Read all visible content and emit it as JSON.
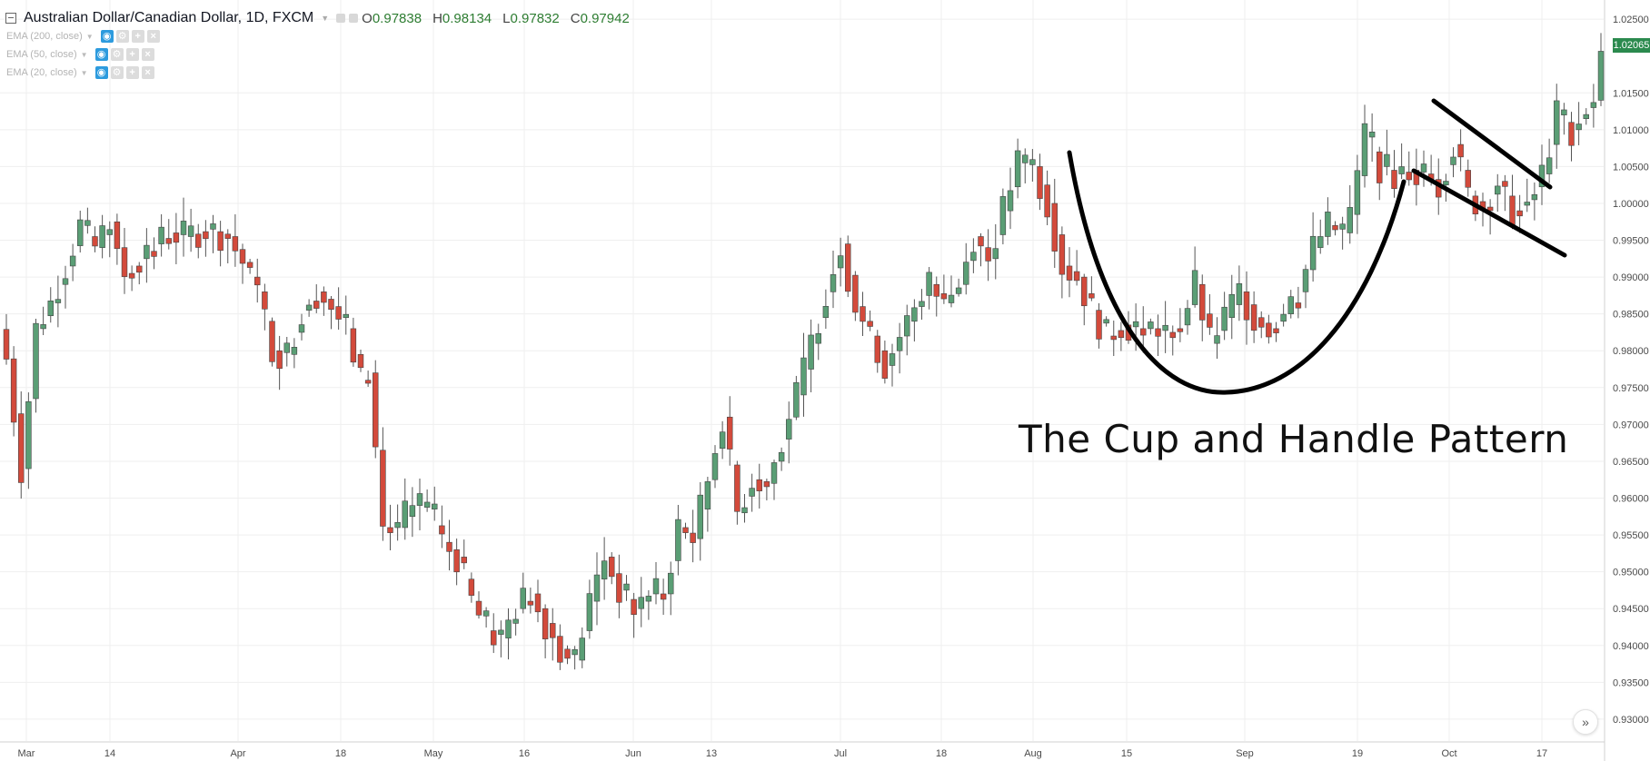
{
  "header": {
    "symbol_title": "Australian Dollar/Canadian Dollar, 1D, FXCM",
    "ohlc": {
      "open_label": "O",
      "open_value": "0.97838",
      "high_label": "H",
      "high_value": "0.98134",
      "low_label": "L",
      "low_value": "0.97832",
      "close_label": "C",
      "close_value": "0.97942"
    }
  },
  "indicators": [
    {
      "label": "EMA (200, close)"
    },
    {
      "label": "EMA (50, close)"
    },
    {
      "label": "EMA (20, close)"
    }
  ],
  "annotation": {
    "text": "The Cup and Handle Pattern"
  },
  "price_tag": {
    "value": "1.02065",
    "color": "#2b8a4e"
  },
  "colors": {
    "up": "#5a9e75",
    "down": "#d34a3b",
    "grid": "#efefef",
    "axis_text": "#4a4a4a",
    "drawing": "#000000"
  },
  "chart_data": {
    "type": "candlestick",
    "x_tick_labels": [
      "Mar",
      "14",
      "Apr",
      "18",
      "May",
      "16",
      "Jun",
      "13",
      "Jul",
      "18",
      "Aug",
      "15",
      "Sep",
      "19",
      "Oct",
      "17"
    ],
    "y_tick_labels": [
      "1.02500",
      "1.01500",
      "1.01000",
      "1.00500",
      "1.00000",
      "0.99500",
      "0.99000",
      "0.98500",
      "0.98000",
      "0.97500",
      "0.97000",
      "0.96500",
      "0.96000",
      "0.95500",
      "0.95000",
      "0.94500",
      "0.94000",
      "0.93500",
      "0.93000"
    ],
    "ylim": [
      0.929,
      1.0265
    ],
    "last_price": 1.02065,
    "close_path": [
      [
        0,
        0.9789
      ],
      [
        2,
        0.964
      ],
      [
        4,
        0.983
      ],
      [
        6,
        0.9865
      ],
      [
        8,
        0.9915
      ],
      [
        10,
        0.997
      ],
      [
        12,
        0.994
      ],
      [
        14,
        0.9975
      ],
      [
        16,
        0.9905
      ],
      [
        18,
        0.9925
      ],
      [
        20,
        0.9945
      ],
      [
        22,
        0.996
      ],
      [
        24,
        0.9955
      ],
      [
        27,
        0.9965
      ],
      [
        30,
        0.9955
      ],
      [
        32,
        0.992
      ],
      [
        34,
        0.988
      ],
      [
        36,
        0.98
      ],
      [
        38,
        0.9795
      ],
      [
        40,
        0.9855
      ],
      [
        42,
        0.988
      ],
      [
        44,
        0.986
      ],
      [
        46,
        0.983
      ],
      [
        48,
        0.976
      ],
      [
        49,
        0.977
      ],
      [
        51,
        0.956
      ],
      [
        53,
        0.956
      ],
      [
        55,
        0.959
      ],
      [
        57,
        0.9585
      ],
      [
        59,
        0.954
      ],
      [
        61,
        0.952
      ],
      [
        63,
        0.946
      ],
      [
        65,
        0.942
      ],
      [
        67,
        0.941
      ],
      [
        69,
        0.945
      ],
      [
        71,
        0.947
      ],
      [
        73,
        0.943
      ],
      [
        75,
        0.9395
      ],
      [
        77,
        0.938
      ],
      [
        79,
        0.946
      ],
      [
        81,
        0.952
      ],
      [
        83,
        0.9475
      ],
      [
        85,
        0.945
      ],
      [
        87,
        0.947
      ],
      [
        89,
        0.947
      ],
      [
        91,
        0.956
      ],
      [
        93,
        0.9545
      ],
      [
        95,
        0.9625
      ],
      [
        97,
        0.971
      ],
      [
        99,
        0.958
      ],
      [
        101,
        0.9625
      ],
      [
        103,
        0.962
      ],
      [
        105,
        0.968
      ],
      [
        107,
        0.974
      ],
      [
        109,
        0.981
      ],
      [
        111,
        0.988
      ],
      [
        113,
        0.9945
      ],
      [
        115,
        0.986
      ],
      [
        117,
        0.982
      ],
      [
        119,
        0.978
      ],
      [
        121,
        0.982
      ],
      [
        123,
        0.986
      ],
      [
        125,
        0.989
      ],
      [
        127,
        0.9865
      ],
      [
        129,
        0.989
      ],
      [
        131,
        0.9955
      ],
      [
        133,
        0.9925
      ],
      [
        135,
        0.999
      ],
      [
        137,
        1.0055
      ],
      [
        139,
        1.005
      ],
      [
        141,
        1.0
      ],
      [
        143,
        0.9915
      ],
      [
        145,
        0.99
      ],
      [
        147,
        0.9855
      ],
      [
        149,
        0.982
      ],
      [
        151,
        0.9835
      ],
      [
        153,
        0.983
      ],
      [
        155,
        0.983
      ],
      [
        157,
        0.9825
      ],
      [
        159,
        0.9835
      ],
      [
        161,
        0.989
      ],
      [
        163,
        0.981
      ],
      [
        165,
        0.9845
      ],
      [
        167,
        0.988
      ],
      [
        169,
        0.9845
      ],
      [
        171,
        0.983
      ],
      [
        173,
        0.985
      ],
      [
        175,
        0.988
      ],
      [
        177,
        0.994
      ],
      [
        179,
        0.997
      ],
      [
        181,
        0.996
      ],
      [
        182,
        0.9985
      ],
      [
        184,
        1.009
      ],
      [
        186,
        1.005
      ],
      [
        188,
        1.004
      ],
      [
        190,
        1.0045
      ],
      [
        192,
        1.004
      ],
      [
        194,
        1.0025
      ],
      [
        196,
        1.008
      ],
      [
        198,
        1.001
      ],
      [
        200,
        0.9995
      ],
      [
        202,
        1.003
      ],
      [
        204,
        0.999
      ],
      [
        206,
        1.0005
      ],
      [
        208,
        1.004
      ],
      [
        210,
        1.012
      ],
      [
        212,
        1.01
      ],
      [
        214,
        1.013
      ],
      [
        215,
        1.014
      ],
      [
        216,
        1.02065
      ]
    ]
  }
}
